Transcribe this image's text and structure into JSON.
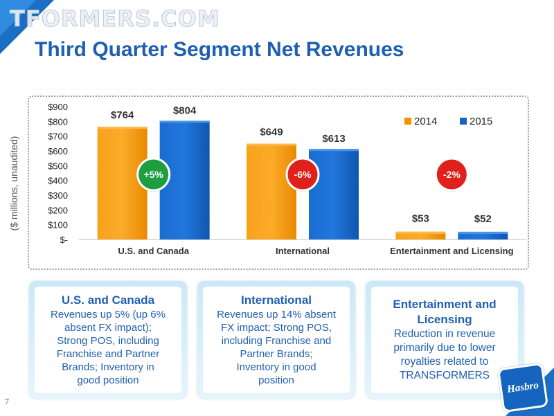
{
  "watermark": "TFORMERS.COM",
  "title": "Third Quarter Segment Net Revenues",
  "page_number": "7",
  "logo_text": "Hasbro",
  "chart_data": {
    "type": "bar",
    "categories": [
      "U.S. and Canada",
      "International",
      "Entertainment and Licensing"
    ],
    "series": [
      {
        "name": "2014",
        "values": [
          764,
          649,
          53
        ],
        "labels": [
          "$764",
          "$649",
          "$53"
        ],
        "color": "#f39200"
      },
      {
        "name": "2015",
        "values": [
          804,
          613,
          52
        ],
        "labels": [
          "$804",
          "$613",
          "$52"
        ],
        "color": "#1565c0"
      }
    ],
    "ylabel": "($ millions, unaudited)",
    "ylim": [
      0,
      900
    ],
    "yticks": [
      0,
      100,
      200,
      300,
      400,
      500,
      600,
      700,
      800,
      900
    ],
    "ytick_labels": [
      "$-",
      "$100",
      "$200",
      "$300",
      "$400",
      "$500",
      "$600",
      "$700",
      "$800",
      "$900"
    ],
    "legend_position": "top-right",
    "grid": false,
    "annotations": [
      {
        "category": "U.S. and Canada",
        "text": "+5%",
        "color": "#1e9e3e"
      },
      {
        "category": "International",
        "text": "-6%",
        "color": "#e0201b"
      },
      {
        "category": "Entertainment and Licensing",
        "text": "-2%",
        "color": "#e0201b"
      }
    ]
  },
  "panels": [
    {
      "title": "U.S. and Canada",
      "lines": [
        "Revenues up 5% (up 6%",
        "absent FX impact);",
        "Strong POS, including",
        "Franchise and Partner",
        "Brands; Inventory in",
        "good position"
      ]
    },
    {
      "title": "International",
      "lines": [
        "Revenues up 14% absent",
        "FX impact; Strong POS,",
        "including Franchise and",
        "Partner Brands;",
        "Inventory in good",
        "position"
      ]
    },
    {
      "title": "Entertainment and Licensing",
      "lines": [
        "Reduction in revenue",
        "primarily due to lower",
        "royalties related to",
        "TRANSFORMERS"
      ]
    }
  ]
}
